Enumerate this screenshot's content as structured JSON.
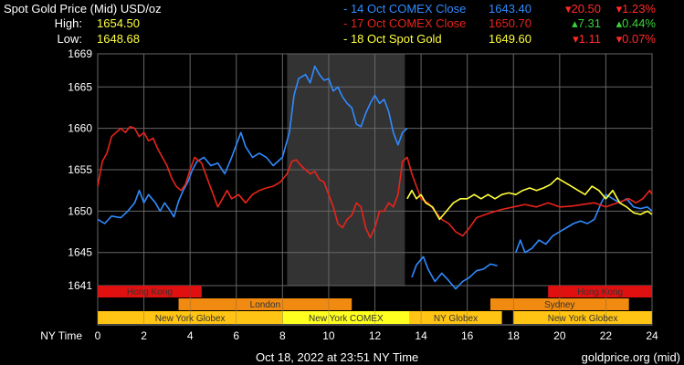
{
  "header": {
    "title": "Spot Gold Price (Mid) USD/oz",
    "high_label": "High:",
    "high_value": "1654.50",
    "low_label": "Low:",
    "low_value": "1648.68"
  },
  "legend": [
    {
      "label": "- 14 Oct COMEX Close",
      "price": "1643.40",
      "change": "▾20.50",
      "pct": "▾1.23%",
      "color": "#2f8bff",
      "dir": "down",
      "pct_dir": "down"
    },
    {
      "label": "- 17 Oct COMEX Close",
      "price": "1650.70",
      "change": "▴7.31",
      "pct": "▴0.44%",
      "color": "#e8241b",
      "dir": "up",
      "pct_dir": "up"
    },
    {
      "label": "- 18 Oct Spot Gold",
      "price": "1649.60",
      "change": "▾1.11",
      "pct": "▾0.07%",
      "color": "#ffff3c",
      "dir": "down",
      "pct_dir": "down"
    }
  ],
  "footer": {
    "datetime": "Oct 18, 2022 at 23:51 NY Time",
    "source": "goldprice.org (mid)",
    "x_axis_label": "NY Time"
  },
  "sessions": {
    "row1": [
      {
        "label": "Hong Kong",
        "start": 0,
        "end": 4.5,
        "color": "#e01010"
      },
      {
        "label": "Hong Kong",
        "start": 19.5,
        "end": 24,
        "color": "#e01010"
      }
    ],
    "row2": [
      {
        "label": "London",
        "start": 3.5,
        "end": 11,
        "color": "#f08a10"
      },
      {
        "label": "Sydney",
        "start": 17,
        "end": 23,
        "color": "#f08a10"
      }
    ],
    "row3": [
      {
        "label": "New York Globex",
        "start": 0,
        "end": 8,
        "color": "#ffc414"
      },
      {
        "label": "New York COMEX",
        "start": 8,
        "end": 13.5,
        "color": "#ffff20"
      },
      {
        "label": "NY Globex",
        "start": 13.5,
        "end": 17.5,
        "color": "#ffc414"
      },
      {
        "label": "New York Globex",
        "start": 18,
        "end": 24,
        "color": "#ffc414"
      }
    ]
  },
  "chart_data": {
    "type": "line",
    "xlabel": "NY Time",
    "ylabel": "",
    "xlim": [
      0,
      24
    ],
    "ylim": [
      1641,
      1669
    ],
    "x_ticks": [
      0,
      2,
      4,
      6,
      8,
      10,
      12,
      14,
      16,
      18,
      20,
      22,
      24
    ],
    "y_ticks": [
      1641,
      1645,
      1650,
      1655,
      1660,
      1665,
      1669
    ],
    "grid": true,
    "shaded_region": [
      8.2,
      13.3
    ],
    "colors": {
      "14oct": "#2f8bff",
      "17oct": "#e8241b",
      "18oct": "#ffff3c"
    },
    "series": [
      {
        "name": "14 Oct COMEX Close",
        "segments": [
          [
            [
              0,
              1649
            ],
            [
              0.3,
              1648.5
            ],
            [
              0.6,
              1649.4
            ],
            [
              1,
              1649.2
            ],
            [
              1.3,
              1650
            ],
            [
              1.6,
              1651
            ],
            [
              1.8,
              1652.5
            ],
            [
              2,
              1651
            ],
            [
              2.2,
              1652
            ],
            [
              2.5,
              1651
            ],
            [
              2.7,
              1650
            ],
            [
              2.9,
              1651
            ],
            [
              3.1,
              1650.2
            ],
            [
              3.3,
              1649.3
            ],
            [
              3.5,
              1651.2
            ],
            [
              3.7,
              1652.5
            ],
            [
              3.9,
              1653.5
            ],
            [
              4.1,
              1655
            ],
            [
              4.3,
              1656
            ],
            [
              4.6,
              1656.5
            ],
            [
              4.9,
              1655.5
            ],
            [
              5.2,
              1655.8
            ],
            [
              5.5,
              1654.5
            ],
            [
              5.8,
              1656.5
            ],
            [
              6.2,
              1659.5
            ],
            [
              6.4,
              1657.8
            ],
            [
              6.7,
              1656.5
            ],
            [
              7,
              1657
            ],
            [
              7.3,
              1656.5
            ],
            [
              7.6,
              1655.5
            ],
            [
              8,
              1656.5
            ],
            [
              8.3,
              1659.5
            ],
            [
              8.5,
              1664
            ],
            [
              8.7,
              1666
            ],
            [
              9,
              1666.5
            ],
            [
              9.2,
              1665.5
            ],
            [
              9.4,
              1667.5
            ],
            [
              9.6,
              1666.5
            ],
            [
              9.8,
              1665.8
            ],
            [
              10,
              1666
            ],
            [
              10.2,
              1664.5
            ],
            [
              10.4,
              1665
            ],
            [
              10.6,
              1663.8
            ],
            [
              10.8,
              1663
            ],
            [
              11,
              1662.5
            ],
            [
              11.2,
              1660.5
            ],
            [
              11.4,
              1660.2
            ],
            [
              11.6,
              1661.8
            ],
            [
              11.8,
              1663
            ],
            [
              12,
              1664
            ],
            [
              12.2,
              1663
            ],
            [
              12.4,
              1663.5
            ],
            [
              12.6,
              1662
            ],
            [
              12.8,
              1659.5
            ],
            [
              13,
              1658
            ],
            [
              13.2,
              1659.5
            ],
            [
              13.4,
              1660
            ]
          ],
          [
            [
              13.6,
              1642
            ],
            [
              13.8,
              1643.5
            ],
            [
              14.1,
              1644.5
            ],
            [
              14.3,
              1643
            ],
            [
              14.6,
              1641.5
            ],
            [
              14.9,
              1642.5
            ],
            [
              15.2,
              1641.6
            ],
            [
              15.5,
              1640.6
            ],
            [
              15.8,
              1641.5
            ],
            [
              16.1,
              1642
            ],
            [
              16.4,
              1642.8
            ],
            [
              16.7,
              1643
            ],
            [
              17,
              1643.6
            ],
            [
              17.3,
              1643.4
            ]
          ],
          [
            [
              18.1,
              1645
            ],
            [
              18.3,
              1646.5
            ],
            [
              18.5,
              1645
            ],
            [
              18.8,
              1645.5
            ],
            [
              19.1,
              1646.5
            ],
            [
              19.4,
              1646
            ],
            [
              19.7,
              1647
            ],
            [
              20,
              1647.5
            ],
            [
              20.3,
              1648
            ],
            [
              20.6,
              1648.5
            ],
            [
              20.9,
              1648.8
            ],
            [
              21.2,
              1648.5
            ],
            [
              21.5,
              1649
            ],
            [
              21.8,
              1651
            ],
            [
              22,
              1652
            ],
            [
              22.3,
              1651.5
            ],
            [
              22.6,
              1651
            ],
            [
              22.9,
              1651.5
            ],
            [
              23.2,
              1650.5
            ],
            [
              23.5,
              1650.3
            ],
            [
              23.8,
              1650.5
            ],
            [
              24,
              1650
            ]
          ]
        ]
      },
      {
        "name": "17 Oct COMEX Close",
        "segments": [
          [
            [
              0,
              1653
            ],
            [
              0.2,
              1656
            ],
            [
              0.4,
              1657
            ],
            [
              0.6,
              1659
            ],
            [
              0.8,
              1659.5
            ],
            [
              1,
              1660
            ],
            [
              1.2,
              1659.5
            ],
            [
              1.4,
              1660.2
            ],
            [
              1.6,
              1660
            ],
            [
              1.8,
              1659
            ],
            [
              2,
              1659.5
            ],
            [
              2.2,
              1658.5
            ],
            [
              2.4,
              1658.8
            ],
            [
              2.6,
              1657.5
            ],
            [
              2.8,
              1656.5
            ],
            [
              3,
              1655.5
            ],
            [
              3.2,
              1654
            ],
            [
              3.4,
              1653
            ],
            [
              3.6,
              1652.5
            ],
            [
              3.8,
              1653.2
            ],
            [
              4,
              1655
            ],
            [
              4.2,
              1656.5
            ],
            [
              4.5,
              1655.8
            ],
            [
              4.8,
              1653.5
            ],
            [
              5,
              1652
            ],
            [
              5.2,
              1650.5
            ],
            [
              5.4,
              1651.5
            ],
            [
              5.6,
              1652.5
            ],
            [
              5.8,
              1651.5
            ],
            [
              6.1,
              1652
            ],
            [
              6.4,
              1651
            ],
            [
              6.7,
              1652
            ],
            [
              7,
              1652.5
            ],
            [
              7.3,
              1652.8
            ],
            [
              7.6,
              1653
            ],
            [
              7.9,
              1653.5
            ],
            [
              8.2,
              1654.5
            ],
            [
              8.4,
              1656
            ],
            [
              8.6,
              1656.2
            ],
            [
              8.8,
              1655.5
            ],
            [
              9,
              1655
            ],
            [
              9.2,
              1654.5
            ],
            [
              9.4,
              1654.8
            ],
            [
              9.6,
              1653.8
            ],
            [
              9.8,
              1653.5
            ],
            [
              10,
              1652
            ],
            [
              10.2,
              1650.5
            ],
            [
              10.4,
              1648.5
            ],
            [
              10.6,
              1648
            ],
            [
              10.8,
              1649
            ],
            [
              11,
              1649.5
            ],
            [
              11.2,
              1651
            ],
            [
              11.4,
              1650.5
            ],
            [
              11.6,
              1648
            ],
            [
              11.8,
              1646.8
            ],
            [
              12,
              1648
            ],
            [
              12.2,
              1650
            ],
            [
              12.4,
              1650
            ],
            [
              12.6,
              1651
            ],
            [
              12.8,
              1650.5
            ],
            [
              13,
              1652
            ],
            [
              13.2,
              1656
            ],
            [
              13.4,
              1656.5
            ],
            [
              13.6,
              1654.5
            ],
            [
              13.8,
              1653
            ],
            [
              14,
              1651.5
            ],
            [
              14.3,
              1651
            ],
            [
              14.6,
              1650
            ],
            [
              14.9,
              1649
            ],
            [
              15.2,
              1648.5
            ],
            [
              15.5,
              1647.5
            ],
            [
              15.8,
              1647
            ],
            [
              16.1,
              1648
            ],
            [
              16.4,
              1649.2
            ],
            [
              16.7,
              1649.5
            ],
            [
              17,
              1649.8
            ],
            [
              17.5,
              1650.2
            ],
            [
              18,
              1650.5
            ],
            [
              18.5,
              1650.8
            ],
            [
              19,
              1650.5
            ],
            [
              19.5,
              1651
            ],
            [
              20,
              1650.5
            ],
            [
              20.5,
              1650.6
            ],
            [
              21,
              1650.8
            ],
            [
              21.5,
              1651
            ],
            [
              22,
              1650.5
            ],
            [
              22.5,
              1651
            ],
            [
              23,
              1651.5
            ],
            [
              23.3,
              1651
            ],
            [
              23.6,
              1651.5
            ],
            [
              23.9,
              1652.5
            ],
            [
              24,
              1652
            ]
          ]
        ]
      },
      {
        "name": "18 Oct Spot Gold",
        "segments": [
          [
            [
              13.4,
              1651.5
            ],
            [
              13.6,
              1652.5
            ],
            [
              13.8,
              1651.5
            ],
            [
              14,
              1652
            ],
            [
              14.2,
              1651
            ],
            [
              14.5,
              1650.5
            ],
            [
              14.8,
              1649
            ],
            [
              15.1,
              1650
            ],
            [
              15.4,
              1651
            ],
            [
              15.7,
              1651.5
            ],
            [
              16,
              1651.5
            ],
            [
              16.3,
              1652
            ],
            [
              16.6,
              1651.5
            ],
            [
              16.9,
              1652
            ],
            [
              17.2,
              1651.5
            ],
            [
              17.5,
              1652
            ],
            [
              17.8,
              1652.2
            ],
            [
              18.1,
              1652
            ],
            [
              18.4,
              1652.5
            ],
            [
              18.7,
              1652.8
            ],
            [
              19,
              1652.5
            ],
            [
              19.3,
              1652.8
            ],
            [
              19.6,
              1653.2
            ],
            [
              19.9,
              1654
            ],
            [
              20.2,
              1653.5
            ],
            [
              20.5,
              1653
            ],
            [
              20.8,
              1652.5
            ],
            [
              21.1,
              1652
            ],
            [
              21.4,
              1653
            ],
            [
              21.7,
              1652.5
            ],
            [
              22,
              1651.5
            ],
            [
              22.3,
              1652.5
            ],
            [
              22.6,
              1651
            ],
            [
              22.9,
              1650.5
            ],
            [
              23.2,
              1649.8
            ],
            [
              23.5,
              1649.6
            ],
            [
              23.8,
              1650
            ],
            [
              24,
              1649.6
            ]
          ]
        ]
      }
    ]
  }
}
